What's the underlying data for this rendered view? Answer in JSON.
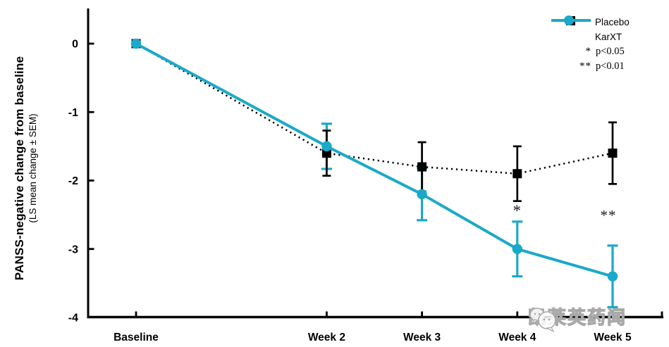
{
  "chart_data": {
    "type": "line",
    "title": "",
    "ylabel": "PANSS-negative change from baseline",
    "ylabel_sub": "(LS mean change ± SEM)",
    "xlabel": "",
    "x_categories": [
      "Baseline",
      "Week 2",
      "Week 3",
      "Week 4",
      "Week 5"
    ],
    "x_weeks": [
      0,
      2,
      3,
      4,
      5
    ],
    "ylim": [
      0.5,
      -4
    ],
    "yticks": [
      0,
      -1,
      -2,
      -3,
      -4
    ],
    "ytick_labels": [
      "0",
      "-1",
      "-2",
      "-3",
      "-4"
    ],
    "grid": "off",
    "series": [
      {
        "name": "Placebo",
        "color": "#000000",
        "marker": "square",
        "line_style": "dotted",
        "values": [
          0,
          -1.6,
          -1.8,
          -1.9,
          -1.6
        ],
        "sem": [
          0,
          0.33,
          0.36,
          0.4,
          0.45
        ]
      },
      {
        "name": "KarXT",
        "color": "#1AA9C8",
        "marker": "circle",
        "line_style": "solid",
        "values": [
          0,
          -1.5,
          -2.2,
          -3.0,
          -3.4
        ],
        "sem": [
          0,
          0.33,
          0.38,
          0.4,
          0.45
        ]
      }
    ],
    "annotations": [
      {
        "text": "*",
        "week": 4,
        "value": -2.43,
        "dx": 0
      },
      {
        "text": "**",
        "week": 5,
        "value": -2.5,
        "dx": -6
      }
    ],
    "legend": {
      "position": "top-right",
      "entries": [
        {
          "label": "Placebo"
        },
        {
          "label": "KarXT"
        }
      ],
      "notes": [
        {
          "symbol": "*",
          "label": "p<0.05"
        },
        {
          "symbol": "**",
          "label": "p<0.01"
        }
      ]
    }
  },
  "watermark": {
    "text": "凯莱英药闻"
  }
}
